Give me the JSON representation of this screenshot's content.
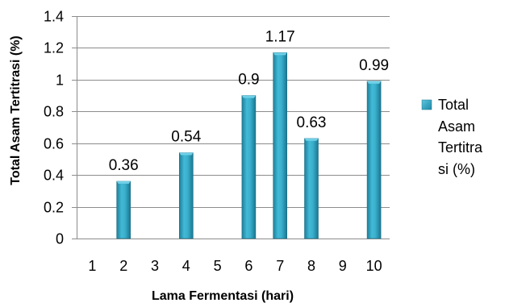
{
  "chart_data": {
    "type": "bar",
    "categories": [
      "1",
      "2",
      "3",
      "4",
      "5",
      "6",
      "7",
      "8",
      "9",
      "10"
    ],
    "series": [
      {
        "name": "Total Asam Tertitrasi (%)",
        "legend_lines": [
          "Total",
          "Asam",
          "Tertitra",
          "si (%)"
        ],
        "values": [
          null,
          0.36,
          null,
          0.54,
          null,
          0.9,
          1.17,
          0.63,
          null,
          0.99
        ],
        "data_labels": [
          "",
          "0.36",
          "",
          "0.54",
          "",
          "0.9",
          "1.17",
          "0.63",
          "",
          "0.99"
        ],
        "color": "#31A9C8"
      }
    ],
    "yticks": [
      "0",
      "0.2",
      "0.4",
      "0.6",
      "0.8",
      "1",
      "1.2",
      "1.4"
    ],
    "xlabel": "Lama Fermentasi (hari)",
    "ylabel": "Total Asam Tertitrasi (%)",
    "ylim": [
      0,
      1.4
    ],
    "grid": true,
    "legend_position": "right"
  }
}
